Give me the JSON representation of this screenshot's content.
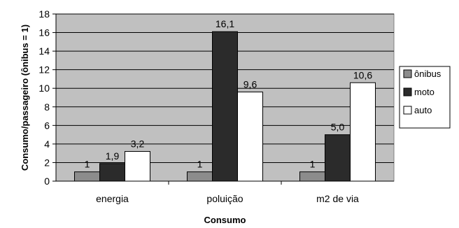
{
  "chart_data": {
    "type": "bar",
    "title": "",
    "xlabel": "Consumo",
    "ylabel": "Consumo/passageiro (ônibus = 1)",
    "categories": [
      "energia",
      "poluição",
      "m2 de via"
    ],
    "ylim": [
      0,
      18
    ],
    "yticks": [
      0,
      2,
      4,
      6,
      8,
      10,
      12,
      14,
      16,
      18
    ],
    "grid": true,
    "legend": "right",
    "series": [
      {
        "name": "ônibus",
        "values": [
          1,
          1,
          1
        ],
        "labels": [
          "1",
          "1",
          "1"
        ],
        "color": "#8c8c8c"
      },
      {
        "name": "moto",
        "values": [
          1.9,
          16.1,
          5.0
        ],
        "labels": [
          "1,9",
          "16,1",
          "5,0"
        ],
        "color": "#2b2b2b"
      },
      {
        "name": "auto",
        "values": [
          3.2,
          9.6,
          10.6
        ],
        "labels": [
          "3,2",
          "9,6",
          "10,6"
        ],
        "color": "#ffffff"
      }
    ],
    "plot_background": "#c0c0c0"
  }
}
